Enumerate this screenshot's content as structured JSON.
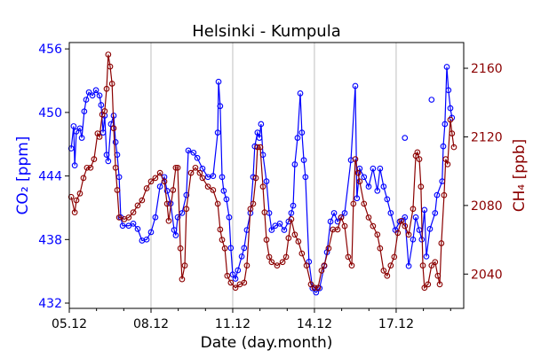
{
  "chart_data": {
    "type": "line",
    "title": "Helsinki - Kumpula",
    "xlabel": "Date (day.month)",
    "ylabel": "CO₂ [ppm]",
    "ylabel_right": "CH₄ [ppb]",
    "xlim": [
      5.0,
      19.48
    ],
    "ylim": [
      431.5,
      456.6
    ],
    "ylim_right": [
      2020,
      2175
    ],
    "x_ticks": [
      {
        "v": 5,
        "label": "05.12"
      },
      {
        "v": 8,
        "label": "08.12"
      },
      {
        "v": 11,
        "label": "11.12"
      },
      {
        "v": 14,
        "label": "14.12"
      },
      {
        "v": 17,
        "label": "17.12"
      }
    ],
    "x_minor_ticks": [
      6,
      7,
      9,
      10,
      12,
      13,
      15,
      16,
      18,
      19
    ],
    "y_ticks": [
      {
        "v": 432,
        "label": "432"
      },
      {
        "v": 438,
        "label": "438"
      },
      {
        "v": 444,
        "label": "444"
      },
      {
        "v": 450,
        "label": "450"
      },
      {
        "v": 456,
        "label": "456"
      }
    ],
    "y_ticks_right": [
      {
        "v": 2040,
        "label": "2040"
      },
      {
        "v": 2080,
        "label": "2080"
      },
      {
        "v": 2120,
        "label": "2120"
      },
      {
        "v": 2160,
        "label": "2160"
      }
    ],
    "grid": "x-major",
    "colors": {
      "co2": "#0000ff",
      "ch4": "#8b0000",
      "grid": "#b0b0b0"
    },
    "series": [
      {
        "name": "CO2",
        "axis": "left",
        "points": [
          [
            5.07,
            446.6
          ],
          [
            5.16,
            448.7
          ],
          [
            5.2,
            445.0
          ],
          [
            5.26,
            448.2
          ],
          [
            5.39,
            448.5
          ],
          [
            5.46,
            447.6
          ],
          [
            5.55,
            450.1
          ],
          [
            5.62,
            451.2
          ],
          [
            5.72,
            451.9
          ],
          [
            5.85,
            451.6
          ],
          [
            5.98,
            452.1
          ],
          [
            6.11,
            451.6
          ],
          [
            6.17,
            450.7
          ],
          [
            6.24,
            448.1
          ],
          [
            6.3,
            449.7
          ],
          [
            6.37,
            446.0
          ],
          [
            6.43,
            445.4
          ],
          [
            6.53,
            448.9
          ],
          [
            6.63,
            449.7
          ],
          [
            6.7,
            447.2
          ],
          [
            6.76,
            446.0
          ],
          [
            6.83,
            443.9
          ],
          [
            6.89,
            440.1
          ],
          [
            6.96,
            439.3
          ],
          [
            7.18,
            439.3
          ],
          [
            7.35,
            439.5
          ],
          [
            7.51,
            439.0
          ],
          [
            7.67,
            437.9
          ],
          [
            7.84,
            438.0
          ],
          [
            8.0,
            438.7
          ],
          [
            8.16,
            440.1
          ],
          [
            8.33,
            443.0
          ],
          [
            8.49,
            443.9
          ],
          [
            8.59,
            442.6
          ],
          [
            8.72,
            441.4
          ],
          [
            8.85,
            438.9
          ],
          [
            8.91,
            438.4
          ],
          [
            8.98,
            440.1
          ],
          [
            9.14,
            440.5
          ],
          [
            9.3,
            442.2
          ],
          [
            9.37,
            446.4
          ],
          [
            9.56,
            446.2
          ],
          [
            9.7,
            445.7
          ],
          [
            9.89,
            444.7
          ],
          [
            10.09,
            443.9
          ],
          [
            10.28,
            444.0
          ],
          [
            10.45,
            448.1
          ],
          [
            10.48,
            452.9
          ],
          [
            10.54,
            450.6
          ],
          [
            10.61,
            443.9
          ],
          [
            10.67,
            442.6
          ],
          [
            10.77,
            441.8
          ],
          [
            10.87,
            440.1
          ],
          [
            10.93,
            437.2
          ],
          [
            11.0,
            434.7
          ],
          [
            11.1,
            434.3
          ],
          [
            11.19,
            435.1
          ],
          [
            11.33,
            436.4
          ],
          [
            11.42,
            437.2
          ],
          [
            11.52,
            438.9
          ],
          [
            11.65,
            440.5
          ],
          [
            11.75,
            443.9
          ],
          [
            11.81,
            446.8
          ],
          [
            11.91,
            448.1
          ],
          [
            11.98,
            447.6
          ],
          [
            12.04,
            448.9
          ],
          [
            12.11,
            446.0
          ],
          [
            12.24,
            443.5
          ],
          [
            12.34,
            440.5
          ],
          [
            12.43,
            438.9
          ],
          [
            12.56,
            439.3
          ],
          [
            12.73,
            439.5
          ],
          [
            12.89,
            438.9
          ],
          [
            13.05,
            439.7
          ],
          [
            13.15,
            440.5
          ],
          [
            13.22,
            441.2
          ],
          [
            13.28,
            445.1
          ],
          [
            13.38,
            447.6
          ],
          [
            13.48,
            451.8
          ],
          [
            13.54,
            448.1
          ],
          [
            13.61,
            445.5
          ],
          [
            13.67,
            443.9
          ],
          [
            13.8,
            435.9
          ],
          [
            13.93,
            433.4
          ],
          [
            14.06,
            433.0
          ],
          [
            14.19,
            433.4
          ],
          [
            14.36,
            435.5
          ],
          [
            14.46,
            436.8
          ],
          [
            14.59,
            439.7
          ],
          [
            14.72,
            440.5
          ],
          [
            14.85,
            439.7
          ],
          [
            14.98,
            440.1
          ],
          [
            15.11,
            440.5
          ],
          [
            15.34,
            445.5
          ],
          [
            15.5,
            452.5
          ],
          [
            15.56,
            441.9
          ],
          [
            15.66,
            444.7
          ],
          [
            15.82,
            443.9
          ],
          [
            15.99,
            443.0
          ],
          [
            16.15,
            444.7
          ],
          [
            16.31,
            442.6
          ],
          [
            16.41,
            444.7
          ],
          [
            16.54,
            443.0
          ],
          [
            16.67,
            441.8
          ],
          [
            16.8,
            440.5
          ],
          [
            16.97,
            438.9
          ],
          [
            17.13,
            439.7
          ],
          [
            17.32,
            440.1
          ],
          [
            17.46,
            435.5
          ],
          [
            17.62,
            438.0
          ],
          [
            17.72,
            440.1
          ],
          [
            17.85,
            438.9
          ],
          [
            17.94,
            438.0
          ],
          [
            18.04,
            440.8
          ],
          [
            18.11,
            436.4
          ],
          [
            18.24,
            439.0
          ],
          [
            18.43,
            440.5
          ],
          [
            18.5,
            442.2
          ],
          [
            18.69,
            443.5
          ],
          [
            18.73,
            446.8
          ],
          [
            18.79,
            448.9
          ],
          [
            18.86,
            454.3
          ],
          [
            18.92,
            452.1
          ],
          [
            18.99,
            450.4
          ],
          [
            19.05,
            449.5
          ]
        ]
      },
      {
        "name": "CO2 (isolated)",
        "axis": "left",
        "markers_only": true,
        "points": [
          [
            17.32,
            447.6
          ],
          [
            18.3,
            451.2
          ]
        ]
      },
      {
        "name": "CH4",
        "axis": "right",
        "points": [
          [
            5.07,
            2085
          ],
          [
            5.2,
            2076
          ],
          [
            5.26,
            2083
          ],
          [
            5.39,
            2087
          ],
          [
            5.52,
            2096
          ],
          [
            5.65,
            2102
          ],
          [
            5.78,
            2102
          ],
          [
            5.91,
            2107
          ],
          [
            6.04,
            2122
          ],
          [
            6.11,
            2120
          ],
          [
            6.21,
            2133
          ],
          [
            6.3,
            2135
          ],
          [
            6.37,
            2148
          ],
          [
            6.43,
            2168
          ],
          [
            6.5,
            2161
          ],
          [
            6.57,
            2151
          ],
          [
            6.63,
            2125
          ],
          [
            6.7,
            2102
          ],
          [
            6.76,
            2089
          ],
          [
            6.83,
            2073
          ],
          [
            7.02,
            2072
          ],
          [
            7.18,
            2073
          ],
          [
            7.35,
            2076
          ],
          [
            7.51,
            2080
          ],
          [
            7.67,
            2083
          ],
          [
            7.84,
            2090
          ],
          [
            8.0,
            2094
          ],
          [
            8.16,
            2096
          ],
          [
            8.33,
            2099
          ],
          [
            8.49,
            2094
          ],
          [
            8.59,
            2081
          ],
          [
            8.65,
            2071
          ],
          [
            8.81,
            2089
          ],
          [
            8.91,
            2102
          ],
          [
            8.98,
            2102
          ],
          [
            9.08,
            2055
          ],
          [
            9.14,
            2037
          ],
          [
            9.24,
            2045
          ],
          [
            9.3,
            2078
          ],
          [
            9.47,
            2099
          ],
          [
            9.63,
            2102
          ],
          [
            9.79,
            2099
          ],
          [
            9.89,
            2096
          ],
          [
            10.09,
            2091
          ],
          [
            10.28,
            2089
          ],
          [
            10.45,
            2081
          ],
          [
            10.54,
            2066
          ],
          [
            10.61,
            2060
          ],
          [
            10.71,
            2055
          ],
          [
            10.8,
            2039
          ],
          [
            10.93,
            2035
          ],
          [
            11.1,
            2032
          ],
          [
            11.26,
            2034
          ],
          [
            11.42,
            2035
          ],
          [
            11.52,
            2045
          ],
          [
            11.65,
            2078
          ],
          [
            11.75,
            2081
          ],
          [
            11.85,
            2096
          ],
          [
            11.91,
            2114
          ],
          [
            12.01,
            2114
          ],
          [
            12.11,
            2091
          ],
          [
            12.17,
            2076
          ],
          [
            12.24,
            2060
          ],
          [
            12.34,
            2050
          ],
          [
            12.43,
            2047
          ],
          [
            12.63,
            2045
          ],
          [
            12.83,
            2047
          ],
          [
            12.96,
            2050
          ],
          [
            13.05,
            2061
          ],
          [
            13.15,
            2072
          ],
          [
            13.28,
            2063
          ],
          [
            13.41,
            2059
          ],
          [
            13.54,
            2052
          ],
          [
            13.71,
            2045
          ],
          [
            13.87,
            2034
          ],
          [
            14.0,
            2032
          ],
          [
            14.13,
            2032
          ],
          [
            14.26,
            2042
          ],
          [
            14.36,
            2045
          ],
          [
            14.52,
            2055
          ],
          [
            14.68,
            2066
          ],
          [
            14.85,
            2066
          ],
          [
            14.98,
            2073
          ],
          [
            15.11,
            2068
          ],
          [
            15.24,
            2050
          ],
          [
            15.37,
            2045
          ],
          [
            15.43,
            2081
          ],
          [
            15.5,
            2107
          ],
          [
            15.6,
            2099
          ],
          [
            15.66,
            2094
          ],
          [
            15.82,
            2081
          ],
          [
            15.99,
            2073
          ],
          [
            16.15,
            2068
          ],
          [
            16.31,
            2063
          ],
          [
            16.41,
            2055
          ],
          [
            16.54,
            2042
          ],
          [
            16.67,
            2039
          ],
          [
            16.8,
            2045
          ],
          [
            16.93,
            2050
          ],
          [
            17.06,
            2064
          ],
          [
            17.19,
            2071
          ],
          [
            17.32,
            2068
          ],
          [
            17.46,
            2063
          ],
          [
            17.62,
            2078
          ],
          [
            17.72,
            2109
          ],
          [
            17.78,
            2111
          ],
          [
            17.85,
            2107
          ],
          [
            17.91,
            2091
          ],
          [
            17.98,
            2045
          ],
          [
            18.04,
            2032
          ],
          [
            18.17,
            2034
          ],
          [
            18.3,
            2045
          ],
          [
            18.43,
            2047
          ],
          [
            18.53,
            2039
          ],
          [
            18.6,
            2034
          ],
          [
            18.66,
            2058
          ],
          [
            18.76,
            2086
          ],
          [
            18.82,
            2107
          ],
          [
            18.89,
            2104
          ],
          [
            18.99,
            2130
          ],
          [
            19.05,
            2122
          ],
          [
            19.12,
            2114
          ]
        ]
      }
    ]
  }
}
